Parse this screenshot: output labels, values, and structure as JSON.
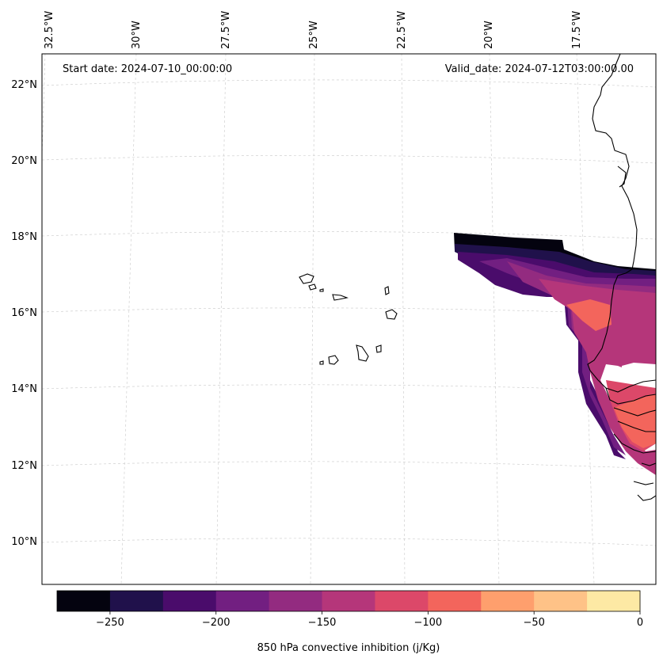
{
  "map": {
    "start_date": "Start date: 2024-07-10_00:00:00",
    "valid_date": "Valid_date: 2024-07-12T03:00:00.00",
    "lon_ticks": [
      "32.5°W",
      "30°W",
      "27.5°W",
      "25°W",
      "22.5°W",
      "20°W",
      "17.5°W"
    ],
    "lat_ticks": [
      "22°N",
      "20°N",
      "18°N",
      "16°N",
      "14°N",
      "12°N",
      "10°N"
    ],
    "features": [
      "Cape Verde islands",
      "West African coastline"
    ]
  },
  "colorbar": {
    "label": "850 hPa convective inhibition (j/Kg)",
    "tick_labels": [
      "−250",
      "−200",
      "−150",
      "−100",
      "−50",
      "0"
    ],
    "levels": [
      -275,
      -250,
      -225,
      -200,
      -175,
      -150,
      -125,
      -100,
      -75,
      -50,
      -25,
      0
    ],
    "colors": [
      "#04030f",
      "#20114b",
      "#4a0c6b",
      "#721f81",
      "#932b80",
      "#b5367a",
      "#dc4869",
      "#f3655c",
      "#fe9f6d",
      "#fec287",
      "#fde9a4"
    ]
  }
}
